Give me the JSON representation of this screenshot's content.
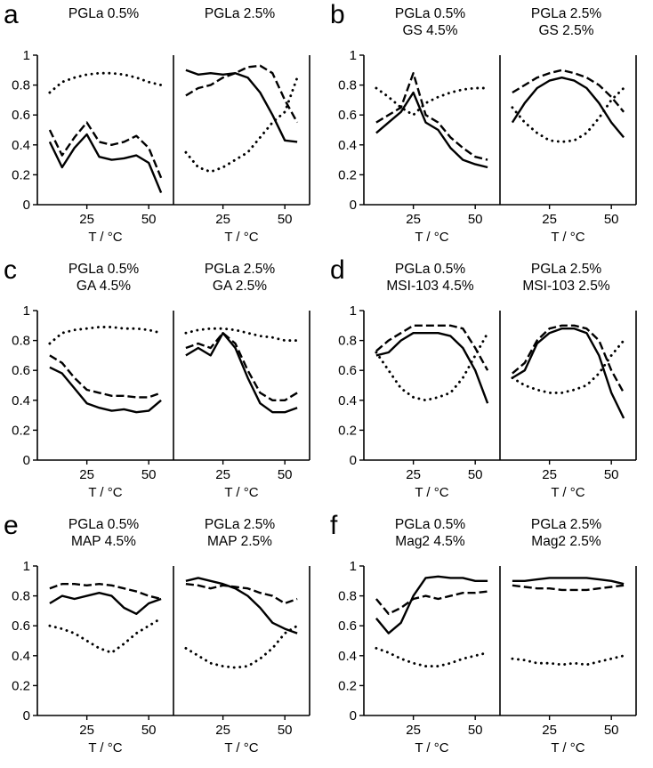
{
  "figure": {
    "background": "#ffffff",
    "line_color": "#000000",
    "xlabel": "T / °C",
    "x_ticks": [
      25,
      50
    ],
    "y_ticks": [
      1,
      0.8,
      0.6,
      0.4,
      0.2,
      0
    ],
    "x_range": [
      5,
      60
    ],
    "y_range": [
      0,
      1
    ],
    "grid": false,
    "legend": "none"
  },
  "chart_data": [
    {
      "panel": "a",
      "type": "line",
      "subplots": [
        {
          "title_lines": [
            "PGLa 0.5%"
          ],
          "x": [
            10,
            15,
            20,
            25,
            30,
            35,
            40,
            45,
            50,
            55
          ],
          "series": [
            {
              "style": "solid",
              "y": [
                0.42,
                0.25,
                0.38,
                0.47,
                0.32,
                0.3,
                0.31,
                0.33,
                0.28,
                0.08
              ]
            },
            {
              "style": "dashed",
              "y": [
                0.5,
                0.33,
                0.45,
                0.55,
                0.42,
                0.4,
                0.42,
                0.46,
                0.38,
                0.18
              ]
            },
            {
              "style": "dotted",
              "y": [
                0.75,
                0.82,
                0.85,
                0.87,
                0.88,
                0.88,
                0.87,
                0.85,
                0.82,
                0.8
              ]
            }
          ]
        },
        {
          "title_lines": [
            "PGLa 2.5%"
          ],
          "x": [
            10,
            15,
            20,
            25,
            30,
            35,
            40,
            45,
            50,
            55
          ],
          "series": [
            {
              "style": "solid",
              "y": [
                0.9,
                0.87,
                0.88,
                0.87,
                0.88,
                0.85,
                0.75,
                0.6,
                0.43,
                0.42
              ]
            },
            {
              "style": "dashed",
              "y": [
                0.73,
                0.78,
                0.8,
                0.85,
                0.88,
                0.92,
                0.93,
                0.88,
                0.7,
                0.55
              ]
            },
            {
              "style": "dotted",
              "y": [
                0.35,
                0.25,
                0.22,
                0.25,
                0.3,
                0.35,
                0.45,
                0.55,
                0.62,
                0.85
              ]
            }
          ]
        }
      ]
    },
    {
      "panel": "b",
      "type": "line",
      "subplots": [
        {
          "title_lines": [
            "PGLa 0.5%",
            "GS 4.5%"
          ],
          "x": [
            10,
            15,
            20,
            25,
            30,
            35,
            40,
            45,
            50,
            55
          ],
          "series": [
            {
              "style": "solid",
              "y": [
                0.48,
                0.55,
                0.62,
                0.75,
                0.55,
                0.5,
                0.38,
                0.3,
                0.27,
                0.25
              ]
            },
            {
              "style": "dashed",
              "y": [
                0.55,
                0.6,
                0.65,
                0.88,
                0.6,
                0.55,
                0.45,
                0.38,
                0.32,
                0.3
              ]
            },
            {
              "style": "dotted",
              "y": [
                0.78,
                0.72,
                0.65,
                0.6,
                0.68,
                0.72,
                0.75,
                0.77,
                0.78,
                0.78
              ]
            }
          ]
        },
        {
          "title_lines": [
            "PGLa 2.5%",
            "GS 2.5%"
          ],
          "x": [
            10,
            15,
            20,
            25,
            30,
            35,
            40,
            45,
            50,
            55
          ],
          "series": [
            {
              "style": "solid",
              "y": [
                0.55,
                0.68,
                0.78,
                0.83,
                0.85,
                0.83,
                0.78,
                0.68,
                0.55,
                0.45
              ]
            },
            {
              "style": "dashed",
              "y": [
                0.75,
                0.8,
                0.85,
                0.88,
                0.9,
                0.88,
                0.85,
                0.8,
                0.72,
                0.62
              ]
            },
            {
              "style": "dotted",
              "y": [
                0.65,
                0.55,
                0.48,
                0.43,
                0.42,
                0.43,
                0.48,
                0.58,
                0.7,
                0.78
              ]
            }
          ]
        }
      ]
    },
    {
      "panel": "c",
      "type": "line",
      "subplots": [
        {
          "title_lines": [
            "PGLa 0.5%",
            "GA 4.5%"
          ],
          "x": [
            10,
            15,
            20,
            25,
            30,
            35,
            40,
            45,
            50,
            55
          ],
          "series": [
            {
              "style": "solid",
              "y": [
                0.62,
                0.58,
                0.48,
                0.38,
                0.35,
                0.33,
                0.34,
                0.32,
                0.33,
                0.4
              ]
            },
            {
              "style": "dashed",
              "y": [
                0.7,
                0.65,
                0.55,
                0.47,
                0.45,
                0.43,
                0.43,
                0.42,
                0.42,
                0.45
              ]
            },
            {
              "style": "dotted",
              "y": [
                0.78,
                0.85,
                0.87,
                0.88,
                0.89,
                0.89,
                0.88,
                0.88,
                0.87,
                0.85
              ]
            }
          ]
        },
        {
          "title_lines": [
            "PGLa 2.5%",
            "GA 2.5%"
          ],
          "x": [
            10,
            15,
            20,
            25,
            30,
            35,
            40,
            45,
            50,
            55
          ],
          "series": [
            {
              "style": "solid",
              "y": [
                0.7,
                0.75,
                0.7,
                0.85,
                0.75,
                0.55,
                0.38,
                0.32,
                0.32,
                0.35
              ]
            },
            {
              "style": "dashed",
              "y": [
                0.75,
                0.78,
                0.75,
                0.85,
                0.78,
                0.6,
                0.45,
                0.4,
                0.4,
                0.45
              ]
            },
            {
              "style": "dotted",
              "y": [
                0.85,
                0.87,
                0.88,
                0.88,
                0.87,
                0.85,
                0.83,
                0.82,
                0.8,
                0.8
              ]
            }
          ]
        }
      ]
    },
    {
      "panel": "d",
      "type": "line",
      "subplots": [
        {
          "title_lines": [
            "PGLa 0.5%",
            "MSI-103 4.5%"
          ],
          "x": [
            10,
            15,
            20,
            25,
            30,
            35,
            40,
            45,
            50,
            55
          ],
          "series": [
            {
              "style": "solid",
              "y": [
                0.7,
                0.72,
                0.8,
                0.85,
                0.85,
                0.85,
                0.83,
                0.75,
                0.6,
                0.38
              ]
            },
            {
              "style": "dashed",
              "y": [
                0.73,
                0.8,
                0.85,
                0.9,
                0.9,
                0.9,
                0.9,
                0.88,
                0.75,
                0.6
              ]
            },
            {
              "style": "dotted",
              "y": [
                0.72,
                0.6,
                0.48,
                0.42,
                0.4,
                0.42,
                0.45,
                0.55,
                0.7,
                0.85
              ]
            }
          ]
        },
        {
          "title_lines": [
            "PGLa 2.5%",
            "MSI-103 2.5%"
          ],
          "x": [
            10,
            15,
            20,
            25,
            30,
            35,
            40,
            45,
            50,
            55
          ],
          "series": [
            {
              "style": "solid",
              "y": [
                0.55,
                0.6,
                0.78,
                0.85,
                0.88,
                0.88,
                0.85,
                0.7,
                0.45,
                0.28
              ]
            },
            {
              "style": "dashed",
              "y": [
                0.58,
                0.65,
                0.8,
                0.88,
                0.9,
                0.9,
                0.88,
                0.8,
                0.6,
                0.45
              ]
            },
            {
              "style": "dotted",
              "y": [
                0.55,
                0.5,
                0.47,
                0.45,
                0.45,
                0.47,
                0.5,
                0.58,
                0.7,
                0.8
              ]
            }
          ]
        }
      ]
    },
    {
      "panel": "e",
      "type": "line",
      "subplots": [
        {
          "title_lines": [
            "PGLa 0.5%",
            "MAP 4.5%"
          ],
          "x": [
            10,
            15,
            20,
            25,
            30,
            35,
            40,
            45,
            50,
            55
          ],
          "series": [
            {
              "style": "solid",
              "y": [
                0.75,
                0.8,
                0.78,
                0.8,
                0.82,
                0.8,
                0.72,
                0.68,
                0.75,
                0.78
              ]
            },
            {
              "style": "dashed",
              "y": [
                0.85,
                0.88,
                0.88,
                0.87,
                0.88,
                0.87,
                0.85,
                0.83,
                0.8,
                0.78
              ]
            },
            {
              "style": "dotted",
              "y": [
                0.6,
                0.58,
                0.55,
                0.5,
                0.45,
                0.42,
                0.48,
                0.55,
                0.6,
                0.65
              ]
            }
          ]
        },
        {
          "title_lines": [
            "PGLa 2.5%",
            "MAP 2.5%"
          ],
          "x": [
            10,
            15,
            20,
            25,
            30,
            35,
            40,
            45,
            50,
            55
          ],
          "series": [
            {
              "style": "solid",
              "y": [
                0.9,
                0.92,
                0.9,
                0.88,
                0.85,
                0.8,
                0.72,
                0.62,
                0.58,
                0.55
              ]
            },
            {
              "style": "dashed",
              "y": [
                0.88,
                0.87,
                0.85,
                0.87,
                0.86,
                0.85,
                0.82,
                0.8,
                0.75,
                0.78
              ]
            },
            {
              "style": "dotted",
              "y": [
                0.45,
                0.4,
                0.35,
                0.33,
                0.32,
                0.33,
                0.38,
                0.45,
                0.55,
                0.6
              ]
            }
          ]
        }
      ]
    },
    {
      "panel": "f",
      "type": "line",
      "subplots": [
        {
          "title_lines": [
            "PGLa 0.5%",
            "Mag2 4.5%"
          ],
          "x": [
            10,
            15,
            20,
            25,
            30,
            35,
            40,
            45,
            50,
            55
          ],
          "series": [
            {
              "style": "solid",
              "y": [
                0.65,
                0.55,
                0.62,
                0.8,
                0.92,
                0.93,
                0.92,
                0.92,
                0.9,
                0.9
              ]
            },
            {
              "style": "dashed",
              "y": [
                0.78,
                0.68,
                0.72,
                0.78,
                0.8,
                0.78,
                0.8,
                0.82,
                0.82,
                0.83
              ]
            },
            {
              "style": "dotted",
              "y": [
                0.45,
                0.42,
                0.38,
                0.35,
                0.33,
                0.33,
                0.35,
                0.38,
                0.4,
                0.42
              ]
            }
          ]
        },
        {
          "title_lines": [
            "PGLa 2.5%",
            "Mag2 2.5%"
          ],
          "x": [
            10,
            15,
            20,
            25,
            30,
            35,
            40,
            45,
            50,
            55
          ],
          "series": [
            {
              "style": "solid",
              "y": [
                0.9,
                0.9,
                0.91,
                0.92,
                0.92,
                0.92,
                0.92,
                0.91,
                0.9,
                0.88
              ]
            },
            {
              "style": "dashed",
              "y": [
                0.87,
                0.86,
                0.85,
                0.85,
                0.84,
                0.84,
                0.84,
                0.85,
                0.86,
                0.87
              ]
            },
            {
              "style": "dotted",
              "y": [
                0.38,
                0.37,
                0.35,
                0.35,
                0.34,
                0.35,
                0.34,
                0.36,
                0.38,
                0.4
              ]
            }
          ]
        }
      ]
    }
  ]
}
